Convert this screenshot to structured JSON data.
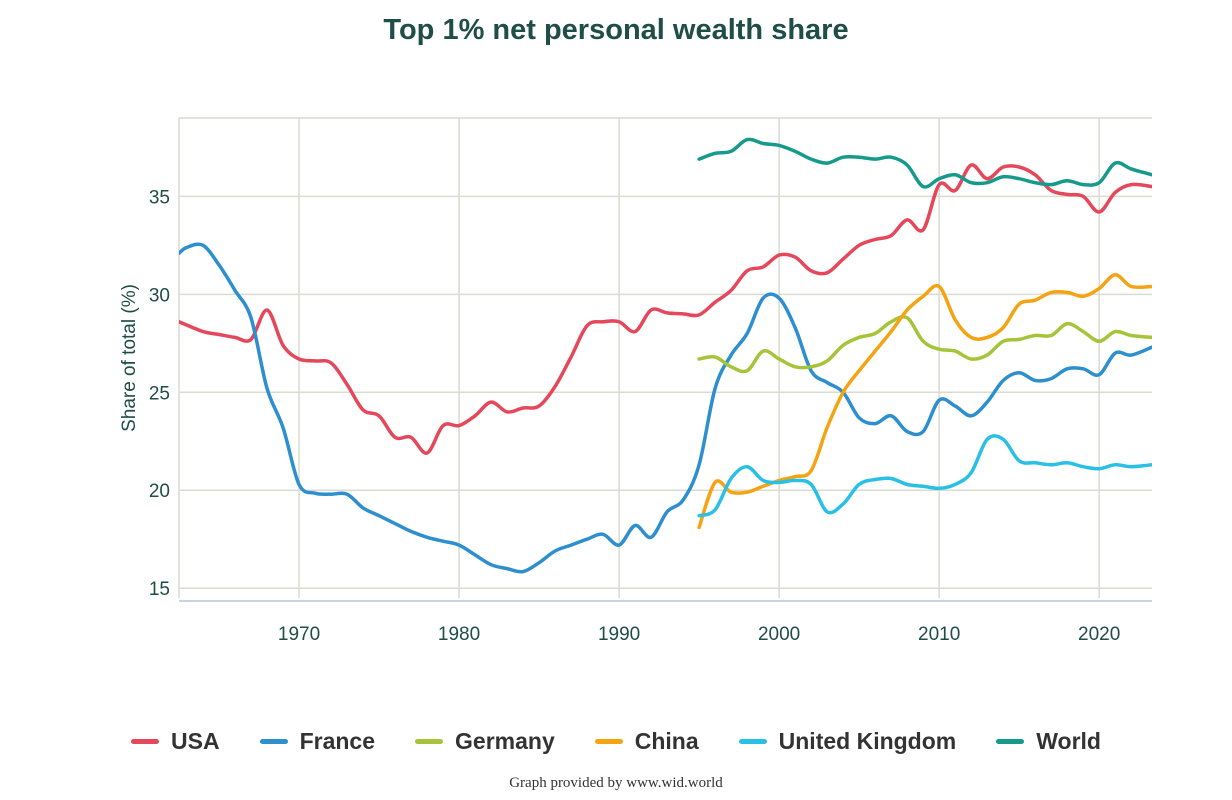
{
  "chart_data": {
    "type": "line",
    "title": "Top 1% net personal wealth share",
    "xlabel": "",
    "ylabel": "Share of total (%)",
    "xlim": [
      1962.5,
      2023.3
    ],
    "ylim": [
      14.5,
      39
    ],
    "xticks": [
      1970,
      1980,
      1990,
      2000,
      2010,
      2020
    ],
    "yticks": [
      15,
      20,
      25,
      30,
      35
    ],
    "grid": true,
    "legend_position": "bottom",
    "series": [
      {
        "name": "USA",
        "color": "#e5485a",
        "points": [
          [
            1962.5,
            28.6
          ],
          [
            1964,
            28.1
          ],
          [
            1965,
            27.95
          ],
          [
            1966,
            27.8
          ],
          [
            1967,
            27.7
          ],
          [
            1968,
            29.2
          ],
          [
            1969,
            27.4
          ],
          [
            1970,
            26.7
          ],
          [
            1971,
            26.6
          ],
          [
            1972,
            26.5
          ],
          [
            1973,
            25.4
          ],
          [
            1974,
            24.1
          ],
          [
            1975,
            23.8
          ],
          [
            1976,
            22.7
          ],
          [
            1977,
            22.7
          ],
          [
            1978,
            21.9
          ],
          [
            1979,
            23.3
          ],
          [
            1980,
            23.3
          ],
          [
            1981,
            23.8
          ],
          [
            1982,
            24.5
          ],
          [
            1983,
            24.0
          ],
          [
            1984,
            24.2
          ],
          [
            1985,
            24.3
          ],
          [
            1986,
            25.3
          ],
          [
            1987,
            26.8
          ],
          [
            1988,
            28.4
          ],
          [
            1989,
            28.6
          ],
          [
            1990,
            28.6
          ],
          [
            1991,
            28.1
          ],
          [
            1992,
            29.2
          ],
          [
            1993,
            29.05
          ],
          [
            1994,
            29.0
          ],
          [
            1995,
            28.95
          ],
          [
            1996,
            29.6
          ],
          [
            1997,
            30.2
          ],
          [
            1998,
            31.2
          ],
          [
            1999,
            31.4
          ],
          [
            2000,
            32.0
          ],
          [
            2001,
            31.9
          ],
          [
            2002,
            31.2
          ],
          [
            2003,
            31.1
          ],
          [
            2004,
            31.8
          ],
          [
            2005,
            32.5
          ],
          [
            2006,
            32.8
          ],
          [
            2007,
            33.0
          ],
          [
            2008,
            33.8
          ],
          [
            2009,
            33.3
          ],
          [
            2010,
            35.6
          ],
          [
            2011,
            35.3
          ],
          [
            2012,
            36.6
          ],
          [
            2013,
            35.9
          ],
          [
            2014,
            36.5
          ],
          [
            2015,
            36.5
          ],
          [
            2016,
            36.1
          ],
          [
            2017,
            35.3
          ],
          [
            2018,
            35.1
          ],
          [
            2019,
            35.0
          ],
          [
            2020,
            34.2
          ],
          [
            2021,
            35.2
          ],
          [
            2022,
            35.6
          ],
          [
            2023.3,
            35.5
          ]
        ]
      },
      {
        "name": "France",
        "color": "#2d8fce",
        "points": [
          [
            1962.5,
            32.1
          ],
          [
            1963,
            32.4
          ],
          [
            1964,
            32.5
          ],
          [
            1965,
            31.5
          ],
          [
            1966,
            30.2
          ],
          [
            1967,
            28.8
          ],
          [
            1968,
            25.2
          ],
          [
            1969,
            23.2
          ],
          [
            1970,
            20.3
          ],
          [
            1971,
            19.85
          ],
          [
            1972,
            19.8
          ],
          [
            1973,
            19.8
          ],
          [
            1974,
            19.1
          ],
          [
            1975,
            18.7
          ],
          [
            1976,
            18.3
          ],
          [
            1977,
            17.9
          ],
          [
            1978,
            17.6
          ],
          [
            1979,
            17.4
          ],
          [
            1980,
            17.2
          ],
          [
            1981,
            16.7
          ],
          [
            1982,
            16.2
          ],
          [
            1983,
            16.0
          ],
          [
            1984,
            15.85
          ],
          [
            1985,
            16.3
          ],
          [
            1986,
            16.9
          ],
          [
            1987,
            17.2
          ],
          [
            1988,
            17.5
          ],
          [
            1989,
            17.75
          ],
          [
            1990,
            17.2
          ],
          [
            1991,
            18.2
          ],
          [
            1992,
            17.6
          ],
          [
            1993,
            18.9
          ],
          [
            1994,
            19.5
          ],
          [
            1995,
            21.3
          ],
          [
            1996,
            25.2
          ],
          [
            1997,
            26.9
          ],
          [
            1998,
            28.0
          ],
          [
            1999,
            29.8
          ],
          [
            2000,
            29.8
          ],
          [
            2001,
            28.3
          ],
          [
            2002,
            26.1
          ],
          [
            2003,
            25.5
          ],
          [
            2004,
            25.0
          ],
          [
            2005,
            23.7
          ],
          [
            2006,
            23.4
          ],
          [
            2007,
            23.8
          ],
          [
            2008,
            23.0
          ],
          [
            2009,
            23.0
          ],
          [
            2010,
            24.6
          ],
          [
            2011,
            24.3
          ],
          [
            2012,
            23.8
          ],
          [
            2013,
            24.5
          ],
          [
            2014,
            25.6
          ],
          [
            2015,
            26.0
          ],
          [
            2016,
            25.6
          ],
          [
            2017,
            25.7
          ],
          [
            2018,
            26.2
          ],
          [
            2019,
            26.2
          ],
          [
            2020,
            25.9
          ],
          [
            2021,
            27.0
          ],
          [
            2022,
            26.9
          ],
          [
            2023.3,
            27.3
          ]
        ]
      },
      {
        "name": "Germany",
        "color": "#a6c43a",
        "points": [
          [
            1995,
            26.7
          ],
          [
            1996,
            26.8
          ],
          [
            1997,
            26.3
          ],
          [
            1998,
            26.1
          ],
          [
            1999,
            27.1
          ],
          [
            2000,
            26.7
          ],
          [
            2001,
            26.3
          ],
          [
            2002,
            26.3
          ],
          [
            2003,
            26.6
          ],
          [
            2004,
            27.4
          ],
          [
            2005,
            27.8
          ],
          [
            2006,
            28.0
          ],
          [
            2007,
            28.6
          ],
          [
            2008,
            28.8
          ],
          [
            2009,
            27.6
          ],
          [
            2010,
            27.2
          ],
          [
            2011,
            27.1
          ],
          [
            2012,
            26.7
          ],
          [
            2013,
            26.9
          ],
          [
            2014,
            27.6
          ],
          [
            2015,
            27.7
          ],
          [
            2016,
            27.9
          ],
          [
            2017,
            27.9
          ],
          [
            2018,
            28.5
          ],
          [
            2019,
            28.1
          ],
          [
            2020,
            27.6
          ],
          [
            2021,
            28.1
          ],
          [
            2022,
            27.9
          ],
          [
            2023.3,
            27.8
          ]
        ]
      },
      {
        "name": "China",
        "color": "#f4a413",
        "points": [
          [
            1995,
            18.1
          ],
          [
            1996,
            20.4
          ],
          [
            1997,
            19.9
          ],
          [
            1998,
            19.9
          ],
          [
            1999,
            20.2
          ],
          [
            2000,
            20.5
          ],
          [
            2001,
            20.7
          ],
          [
            2002,
            21.0
          ],
          [
            2003,
            23.2
          ],
          [
            2004,
            25.0
          ],
          [
            2005,
            26.1
          ],
          [
            2006,
            27.1
          ],
          [
            2007,
            28.1
          ],
          [
            2008,
            29.2
          ],
          [
            2009,
            29.9
          ],
          [
            2010,
            30.4
          ],
          [
            2011,
            28.7
          ],
          [
            2012,
            27.8
          ],
          [
            2013,
            27.8
          ],
          [
            2014,
            28.3
          ],
          [
            2015,
            29.5
          ],
          [
            2016,
            29.7
          ],
          [
            2017,
            30.1
          ],
          [
            2018,
            30.1
          ],
          [
            2019,
            29.9
          ],
          [
            2020,
            30.3
          ],
          [
            2021,
            31.0
          ],
          [
            2022,
            30.4
          ],
          [
            2023.3,
            30.4
          ]
        ]
      },
      {
        "name": "United Kingdom",
        "color": "#29c0e6",
        "points": [
          [
            1995,
            18.7
          ],
          [
            1996,
            19.0
          ],
          [
            1997,
            20.6
          ],
          [
            1998,
            21.2
          ],
          [
            1999,
            20.5
          ],
          [
            2000,
            20.4
          ],
          [
            2001,
            20.5
          ],
          [
            2002,
            20.3
          ],
          [
            2003,
            18.9
          ],
          [
            2004,
            19.3
          ],
          [
            2005,
            20.3
          ],
          [
            2006,
            20.55
          ],
          [
            2007,
            20.6
          ],
          [
            2008,
            20.3
          ],
          [
            2009,
            20.2
          ],
          [
            2010,
            20.1
          ],
          [
            2011,
            20.3
          ],
          [
            2012,
            20.9
          ],
          [
            2013,
            22.6
          ],
          [
            2014,
            22.6
          ],
          [
            2015,
            21.5
          ],
          [
            2016,
            21.4
          ],
          [
            2017,
            21.3
          ],
          [
            2018,
            21.4
          ],
          [
            2019,
            21.2
          ],
          [
            2020,
            21.1
          ],
          [
            2021,
            21.3
          ],
          [
            2022,
            21.2
          ],
          [
            2023.3,
            21.3
          ]
        ]
      },
      {
        "name": "World",
        "color": "#159a8c",
        "points": [
          [
            1995,
            36.9
          ],
          [
            1996,
            37.2
          ],
          [
            1997,
            37.3
          ],
          [
            1998,
            37.9
          ],
          [
            1999,
            37.7
          ],
          [
            2000,
            37.6
          ],
          [
            2001,
            37.3
          ],
          [
            2002,
            36.9
          ],
          [
            2003,
            36.7
          ],
          [
            2004,
            37.0
          ],
          [
            2005,
            37.0
          ],
          [
            2006,
            36.9
          ],
          [
            2007,
            37.0
          ],
          [
            2008,
            36.6
          ],
          [
            2009,
            35.5
          ],
          [
            2010,
            35.9
          ],
          [
            2011,
            36.1
          ],
          [
            2012,
            35.7
          ],
          [
            2013,
            35.7
          ],
          [
            2014,
            36.0
          ],
          [
            2015,
            35.9
          ],
          [
            2016,
            35.7
          ],
          [
            2017,
            35.6
          ],
          [
            2018,
            35.8
          ],
          [
            2019,
            35.6
          ],
          [
            2020,
            35.7
          ],
          [
            2021,
            36.7
          ],
          [
            2022,
            36.4
          ],
          [
            2023.3,
            36.1
          ]
        ]
      }
    ]
  },
  "footer": {
    "credit": "Graph provided by www.wid.world"
  }
}
